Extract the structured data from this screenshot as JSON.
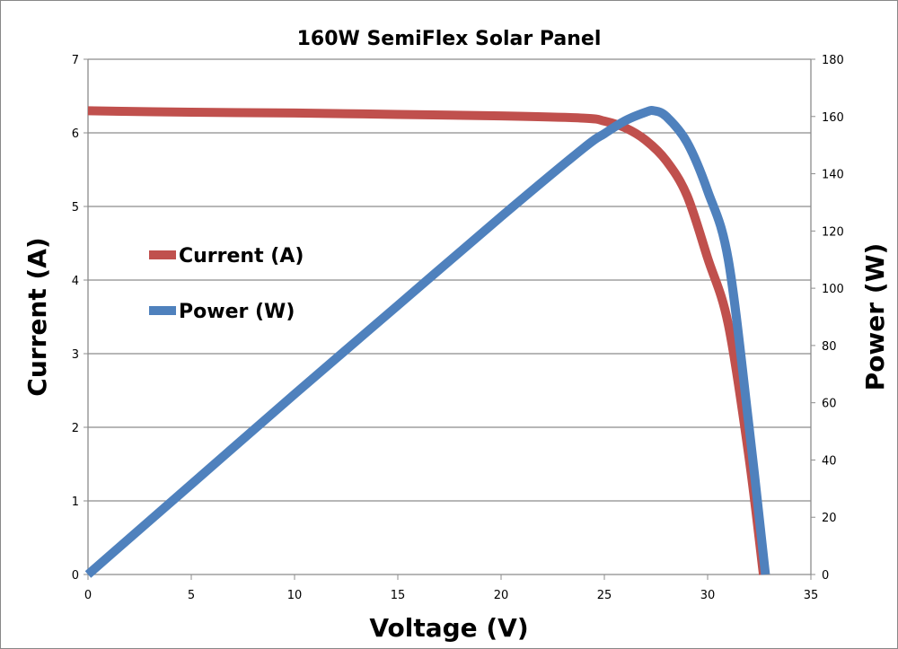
{
  "chart_data": {
    "type": "line",
    "title": "160W SemiFlex Solar Panel",
    "xlabel": "Voltage (V)",
    "ylabel": "Current (A)",
    "y2label": "Power (W)",
    "xlim": [
      0,
      35
    ],
    "ylim": [
      0,
      7
    ],
    "y2lim": [
      0,
      180
    ],
    "xticks": [
      "0",
      "5",
      "10",
      "15",
      "20",
      "25",
      "30",
      "35"
    ],
    "yticks": [
      "0",
      "1",
      "2",
      "3",
      "4",
      "5",
      "6",
      "7"
    ],
    "y2ticks": [
      "0",
      "20",
      "40",
      "60",
      "80",
      "100",
      "120",
      "140",
      "160",
      "180"
    ],
    "grid": true,
    "legend_position": "left-middle",
    "series": [
      {
        "name": "Current (A)",
        "axis": "left",
        "color": "#c0504d",
        "x": [
          0,
          5,
          10,
          15,
          20,
          24,
          25,
          26,
          27,
          28,
          29,
          30,
          31,
          32,
          32.7
        ],
        "y": [
          6.3,
          6.28,
          6.27,
          6.25,
          6.23,
          6.2,
          6.16,
          6.07,
          5.9,
          5.62,
          5.15,
          4.3,
          3.4,
          1.6,
          0
        ]
      },
      {
        "name": "Power (W)",
        "axis": "right",
        "color": "#4f81bd",
        "x": [
          0,
          5,
          10,
          15,
          20,
          24,
          25,
          26,
          27,
          27.4,
          28,
          29,
          30,
          31,
          32,
          32.8
        ],
        "y": [
          0,
          31.5,
          63,
          94,
          125,
          149,
          154,
          158.5,
          161.5,
          162,
          160,
          151,
          134,
          110,
          52,
          0
        ]
      }
    ]
  }
}
